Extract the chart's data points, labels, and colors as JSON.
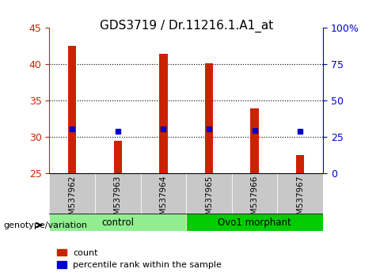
{
  "title": "GDS3719 / Dr.11216.1.A1_at",
  "samples": [
    "GSM537962",
    "GSM537963",
    "GSM537964",
    "GSM537965",
    "GSM537966",
    "GSM537967"
  ],
  "count_values": [
    42.5,
    29.5,
    41.5,
    40.2,
    34.0,
    27.5
  ],
  "percentile_values": [
    30.5,
    29.3,
    30.5,
    30.5,
    29.8,
    29.1
  ],
  "ylim_left": [
    25,
    45
  ],
  "ylim_right": [
    0,
    100
  ],
  "yticks_left": [
    25,
    30,
    35,
    40,
    45
  ],
  "yticks_right": [
    0,
    25,
    50,
    75,
    100
  ],
  "groups": [
    {
      "label": "control",
      "indices": [
        0,
        1,
        2
      ],
      "color": "#90EE90"
    },
    {
      "label": "Ovo1 morphant",
      "indices": [
        3,
        4,
        5
      ],
      "color": "#00CC00"
    }
  ],
  "bar_width": 0.35,
  "bar_color_count": "#CC2200",
  "bar_color_percentile": "#0000CC",
  "background_color": "#ffffff",
  "plot_bg_color": "#ffffff",
  "grid_color": "#000000",
  "left_axis_color": "#CC2200",
  "right_axis_color": "#0000CC",
  "xlabel_color": "#000000",
  "genotype_label": "genotype/variation",
  "legend_count_label": "count",
  "legend_percentile_label": "percentile rank within the sample",
  "title_fontsize": 11,
  "tick_fontsize": 9,
  "label_fontsize": 9,
  "xticklabel_area_color": "#C8C8C8",
  "group_bar_height": 0.055
}
